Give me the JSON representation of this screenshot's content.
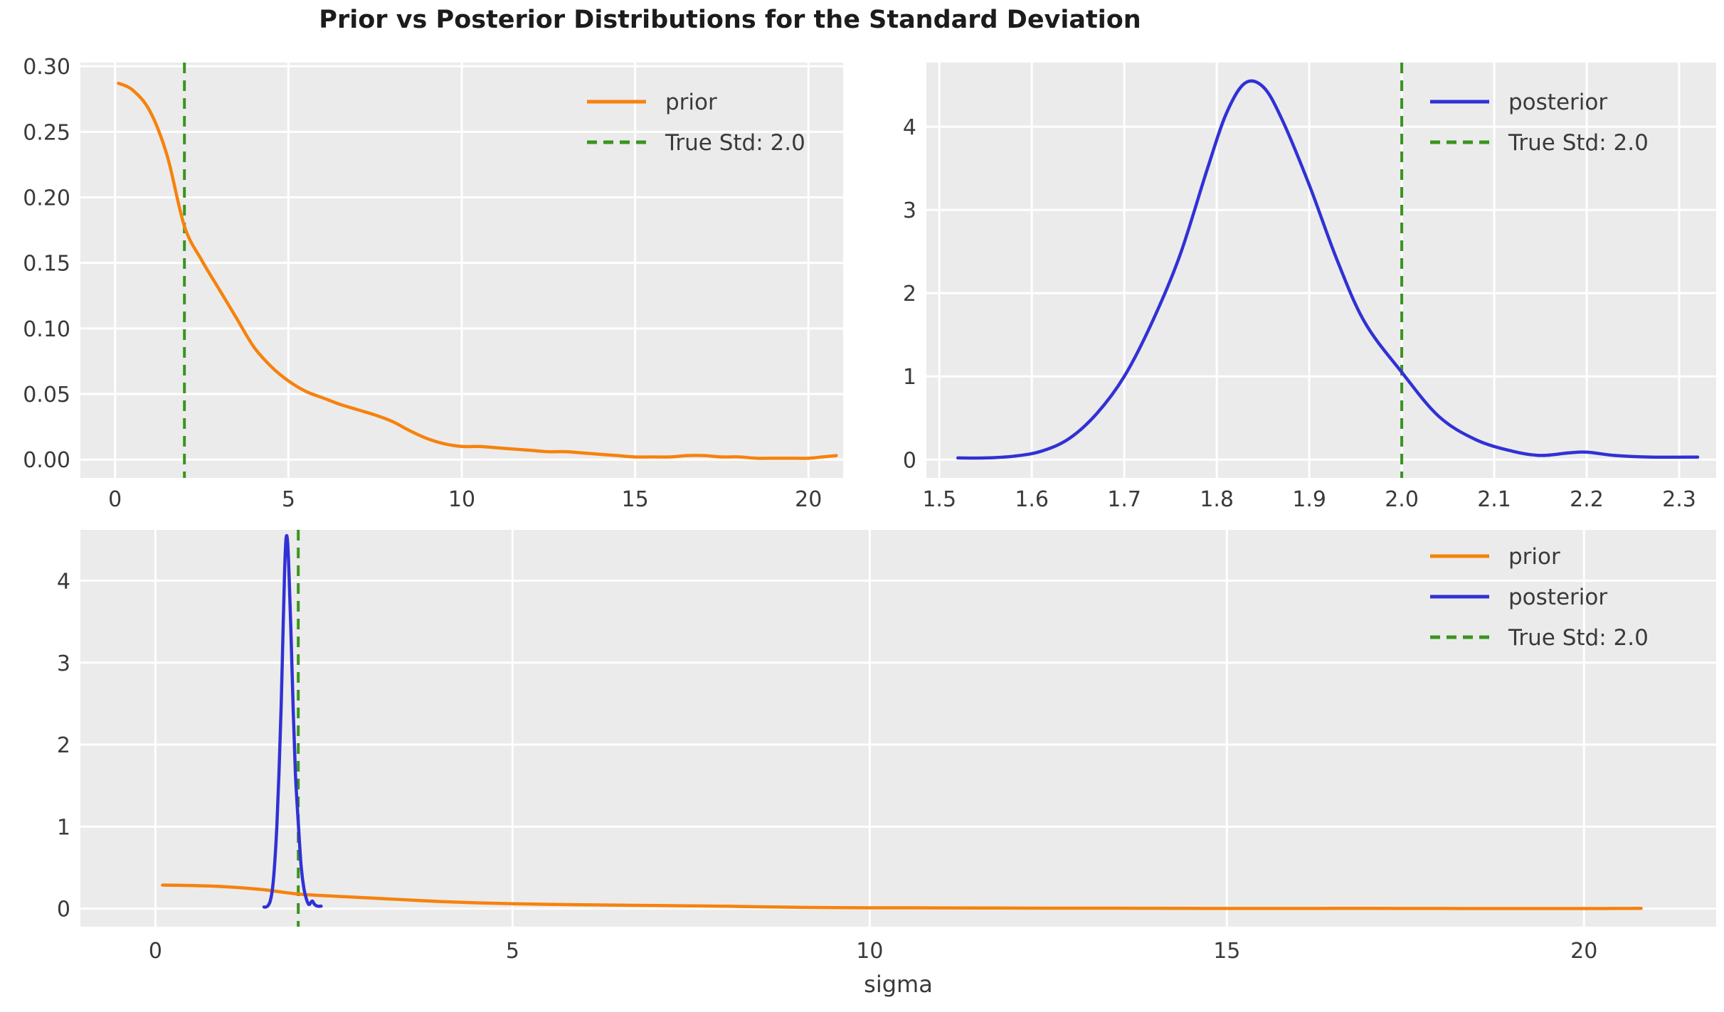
{
  "figure": {
    "title": "Prior vs Posterior Distributions for the Standard Deviation",
    "background": "#ffffff",
    "axes_background": "#ebebeb",
    "grid_color": "#ffffff",
    "colors": {
      "prior": "#f6820d",
      "posterior": "#3131d6",
      "true_std": "#3a941f"
    }
  },
  "series_data": {
    "prior": {
      "x": [
        0.1,
        0.5,
        1.0,
        1.5,
        2.0,
        2.5,
        3.0,
        3.5,
        4.0,
        4.5,
        5.0,
        5.5,
        6.0,
        6.5,
        7.0,
        7.5,
        8.0,
        8.5,
        9.0,
        9.5,
        10.0,
        10.5,
        11.0,
        11.5,
        12.0,
        12.5,
        13.0,
        13.5,
        14.0,
        14.5,
        15.0,
        15.5,
        16.0,
        16.5,
        17.0,
        17.5,
        18.0,
        18.5,
        19.0,
        19.5,
        20.0,
        20.4,
        20.8
      ],
      "y": [
        0.287,
        0.282,
        0.266,
        0.232,
        0.178,
        0.152,
        0.13,
        0.108,
        0.086,
        0.071,
        0.06,
        0.052,
        0.047,
        0.042,
        0.038,
        0.034,
        0.029,
        0.022,
        0.016,
        0.012,
        0.01,
        0.01,
        0.009,
        0.008,
        0.007,
        0.006,
        0.006,
        0.005,
        0.004,
        0.003,
        0.002,
        0.002,
        0.002,
        0.003,
        0.003,
        0.002,
        0.002,
        0.001,
        0.001,
        0.001,
        0.001,
        0.002,
        0.003
      ]
    },
    "posterior": {
      "x": [
        1.52,
        1.55,
        1.58,
        1.61,
        1.64,
        1.67,
        1.7,
        1.73,
        1.76,
        1.79,
        1.81,
        1.83,
        1.85,
        1.87,
        1.9,
        1.93,
        1.96,
        2.0,
        2.04,
        2.08,
        2.12,
        2.15,
        2.18,
        2.2,
        2.23,
        2.27,
        2.32
      ],
      "y": [
        0.02,
        0.02,
        0.04,
        0.1,
        0.25,
        0.55,
        1.0,
        1.65,
        2.45,
        3.5,
        4.15,
        4.52,
        4.48,
        4.1,
        3.3,
        2.4,
        1.65,
        1.05,
        0.52,
        0.24,
        0.1,
        0.05,
        0.08,
        0.09,
        0.05,
        0.03,
        0.03
      ]
    }
  },
  "chart_data": [
    {
      "id": "prior_zoom",
      "type": "line",
      "xlim": [
        -1.0,
        21.0
      ],
      "ylim": [
        -0.014,
        0.3028
      ],
      "xticks": [
        0,
        5,
        10,
        15,
        20
      ],
      "xtick_labels": [
        "0",
        "5",
        "10",
        "15",
        "20"
      ],
      "yticks": [
        0.0,
        0.05,
        0.1,
        0.15,
        0.2,
        0.25,
        0.3
      ],
      "ytick_labels": [
        "0.00",
        "0.05",
        "0.10",
        "0.15",
        "0.20",
        "0.25",
        "0.30"
      ],
      "xlabel": "",
      "series": [
        {
          "name": "prior",
          "data": "prior",
          "color": "#f6820d",
          "dash": false
        }
      ],
      "vline": {
        "x": 2.0,
        "color": "#3a941f",
        "label": "True Std: 2.0"
      },
      "legend": [
        {
          "label": "prior",
          "color": "#f6820d",
          "dash": false
        },
        {
          "label": "True Std: 2.0",
          "color": "#3a941f",
          "dash": true
        }
      ]
    },
    {
      "id": "posterior_zoom",
      "type": "line",
      "xlim": [
        1.486,
        2.34
      ],
      "ylim": [
        -0.22,
        4.77
      ],
      "xticks": [
        1.5,
        1.6,
        1.7,
        1.8,
        1.9,
        2.0,
        2.1,
        2.2,
        2.3
      ],
      "xtick_labels": [
        "1.5",
        "1.6",
        "1.7",
        "1.8",
        "1.9",
        "2.0",
        "2.1",
        "2.2",
        "2.3"
      ],
      "yticks": [
        0,
        1,
        2,
        3,
        4
      ],
      "ytick_labels": [
        "0",
        "1",
        "2",
        "3",
        "4"
      ],
      "xlabel": "",
      "series": [
        {
          "name": "posterior",
          "data": "posterior",
          "color": "#3131d6",
          "dash": false
        }
      ],
      "vline": {
        "x": 2.0,
        "color": "#3a941f",
        "label": "True Std: 2.0"
      },
      "legend": [
        {
          "label": "posterior",
          "color": "#3131d6",
          "dash": false
        },
        {
          "label": "True Std: 2.0",
          "color": "#3a941f",
          "dash": true
        }
      ]
    },
    {
      "id": "combined",
      "type": "line",
      "xlim": [
        -1.05,
        21.85
      ],
      "ylim": [
        -0.22,
        4.62
      ],
      "xticks": [
        0,
        5,
        10,
        15,
        20
      ],
      "xtick_labels": [
        "0",
        "5",
        "10",
        "15",
        "20"
      ],
      "yticks": [
        0,
        1,
        2,
        3,
        4
      ],
      "ytick_labels": [
        "0",
        "1",
        "2",
        "3",
        "4"
      ],
      "xlabel": "sigma",
      "series": [
        {
          "name": "prior",
          "data": "prior",
          "color": "#f6820d",
          "dash": false
        },
        {
          "name": "posterior",
          "data": "posterior",
          "color": "#3131d6",
          "dash": false
        }
      ],
      "vline": {
        "x": 2.0,
        "color": "#3a941f",
        "label": "True Std: 2.0"
      },
      "legend": [
        {
          "label": "prior",
          "color": "#f6820d",
          "dash": false
        },
        {
          "label": "posterior",
          "color": "#3131d6",
          "dash": false
        },
        {
          "label": "True Std: 2.0",
          "color": "#3a941f",
          "dash": true
        }
      ]
    }
  ]
}
